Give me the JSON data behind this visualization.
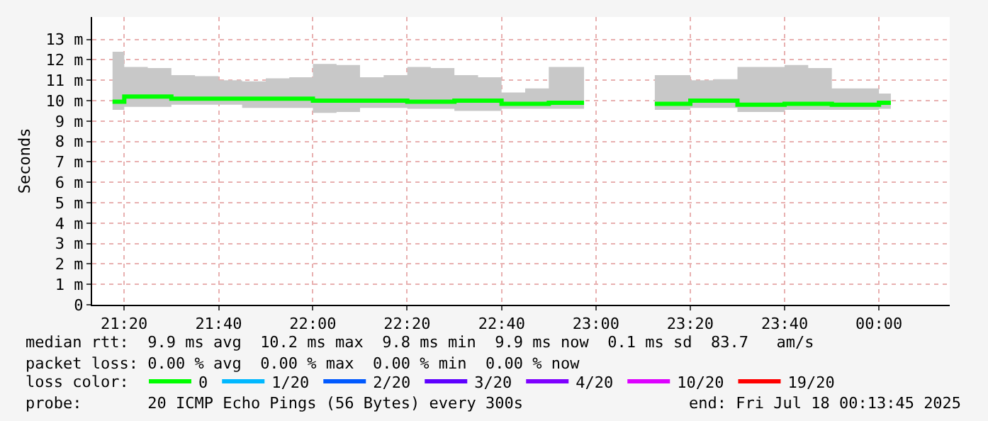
{
  "chart_data": {
    "type": "step",
    "ylabel": "Seconds",
    "x": [
      21.292,
      21.375,
      21.458,
      21.542,
      21.625,
      21.708,
      21.792,
      21.875,
      21.958,
      22.042,
      22.125,
      22.208,
      22.292,
      22.375,
      22.458,
      22.542,
      22.625,
      22.708,
      22.792,
      22.875,
      22.958,
      23.042,
      23.125,
      23.208,
      23.292,
      23.375,
      23.458,
      23.542,
      23.625,
      23.708,
      23.792,
      23.875,
      23.958,
      24.042
    ],
    "series": [
      {
        "name": "0",
        "color": "#00ff00",
        "values": [
          9.95,
          10.2,
          10.2,
          10.1,
          10.1,
          10.1,
          10.1,
          10.1,
          10.1,
          10.0,
          10.0,
          10.0,
          10.0,
          9.95,
          9.95,
          10.0,
          10.0,
          9.85,
          9.85,
          9.9,
          9.9,
          null,
          null,
          9.85,
          9.85,
          10.0,
          10.0,
          9.8,
          9.8,
          9.85,
          9.85,
          9.8,
          9.8,
          9.9
        ],
        "lower": [
          9.55,
          9.7,
          9.7,
          9.8,
          9.8,
          9.8,
          9.65,
          9.65,
          9.65,
          9.4,
          9.45,
          9.65,
          9.65,
          9.6,
          9.6,
          9.5,
          9.5,
          9.6,
          9.6,
          9.6,
          9.6,
          null,
          null,
          9.55,
          9.55,
          9.65,
          9.65,
          9.45,
          9.45,
          9.55,
          9.55,
          9.55,
          9.55,
          9.6
        ],
        "upper": [
          12.4,
          11.65,
          11.6,
          11.25,
          11.2,
          11.0,
          10.95,
          11.1,
          11.15,
          11.8,
          11.75,
          11.15,
          11.25,
          11.65,
          11.6,
          11.25,
          11.15,
          10.4,
          10.6,
          11.65,
          11.65,
          null,
          null,
          11.25,
          11.25,
          11.0,
          11.05,
          11.65,
          11.65,
          11.75,
          11.6,
          10.6,
          10.6,
          10.35
        ]
      },
      {
        "name": "1/20",
        "color": "#00b8ff",
        "values": [
          null,
          null,
          null,
          null,
          null,
          null,
          null,
          null,
          null,
          null,
          null,
          null,
          null,
          null,
          null,
          null,
          null,
          null,
          null,
          null,
          null,
          null,
          null,
          null,
          null,
          null,
          null,
          null,
          null,
          null,
          null,
          null,
          null,
          null
        ]
      },
      {
        "name": "2/20",
        "color": "#0059ff",
        "values": [
          null,
          null,
          null,
          null,
          null,
          null,
          null,
          null,
          null,
          null,
          null,
          null,
          null,
          null,
          null,
          null,
          null,
          null,
          null,
          null,
          null,
          null,
          null,
          null,
          null,
          null,
          null,
          null,
          null,
          null,
          null,
          null,
          null,
          null
        ]
      },
      {
        "name": "3/20",
        "color": "#5e00ff",
        "values": [
          null,
          null,
          null,
          null,
          null,
          null,
          null,
          null,
          null,
          null,
          null,
          null,
          null,
          null,
          null,
          null,
          null,
          null,
          null,
          null,
          null,
          null,
          null,
          null,
          null,
          null,
          null,
          null,
          null,
          null,
          null,
          null,
          null,
          null
        ]
      },
      {
        "name": "4/20",
        "color": "#7e00ff",
        "values": [
          null,
          null,
          null,
          null,
          null,
          null,
          null,
          null,
          null,
          null,
          null,
          null,
          null,
          null,
          null,
          null,
          null,
          null,
          null,
          null,
          null,
          null,
          null,
          null,
          null,
          null,
          null,
          null,
          null,
          null,
          null,
          null,
          null,
          null
        ]
      },
      {
        "name": "10/20",
        "color": "#dd00ff",
        "values": [
          null,
          null,
          null,
          null,
          null,
          null,
          null,
          null,
          null,
          null,
          null,
          null,
          null,
          null,
          null,
          null,
          null,
          null,
          null,
          null,
          null,
          null,
          null,
          null,
          null,
          null,
          null,
          null,
          null,
          null,
          null,
          null,
          null,
          null
        ]
      },
      {
        "name": "19/20",
        "color": "#ff0000",
        "values": [
          null,
          null,
          null,
          null,
          null,
          null,
          null,
          null,
          null,
          null,
          null,
          null,
          null,
          null,
          null,
          null,
          null,
          null,
          null,
          null,
          null,
          null,
          null,
          null,
          null,
          null,
          null,
          null,
          null,
          null,
          null,
          null,
          null,
          null
        ]
      }
    ],
    "legend": "bottom",
    "legend_title": "loss color:",
    "grid": true,
    "line_style": "solid",
    "xlim": [
      21.22,
      24.25
    ],
    "xticks": [
      {
        "value": 21.333,
        "label": "21:20"
      },
      {
        "value": 21.667,
        "label": "21:40"
      },
      {
        "value": 22,
        "label": "22:00"
      },
      {
        "value": 22.333,
        "label": "22:20"
      },
      {
        "value": 22.667,
        "label": "22:40"
      },
      {
        "value": 23,
        "label": "23:00"
      },
      {
        "value": 23.333,
        "label": "23:20"
      },
      {
        "value": 23.667,
        "label": "23:40"
      },
      {
        "value": 24,
        "label": "00:00"
      }
    ],
    "ylim": [
      0,
      14.1
    ],
    "yticks": [
      {
        "value": 0,
        "label": "0"
      },
      {
        "value": 1,
        "label": "1 m"
      },
      {
        "value": 2,
        "label": "2 m"
      },
      {
        "value": 3,
        "label": "3 m"
      },
      {
        "value": 4,
        "label": "4 m"
      },
      {
        "value": 5,
        "label": "5 m"
      },
      {
        "value": 6,
        "label": "6 m"
      },
      {
        "value": 7,
        "label": "7 m"
      },
      {
        "value": 8,
        "label": "8 m"
      },
      {
        "value": 9,
        "label": "9 m"
      },
      {
        "value": 10,
        "label": "10 m"
      },
      {
        "value": 11,
        "label": "11 m"
      },
      {
        "value": 12,
        "label": "12 m"
      },
      {
        "value": 13,
        "label": "13 m"
      }
    ],
    "annotations": [
      "median rtt:  9.9 ms avg  10.2 ms max  9.8 ms min  9.9 ms now  0.1 ms sd  83.7   am/s",
      "packet loss: 0.00 % avg  0.00 % max  0.00 % min  0.00 % now",
      "probe:       20 ICMP Echo Pings (56 Bytes) every 300s",
      "end: Fri Jul 18 00:13:45 2025"
    ]
  }
}
